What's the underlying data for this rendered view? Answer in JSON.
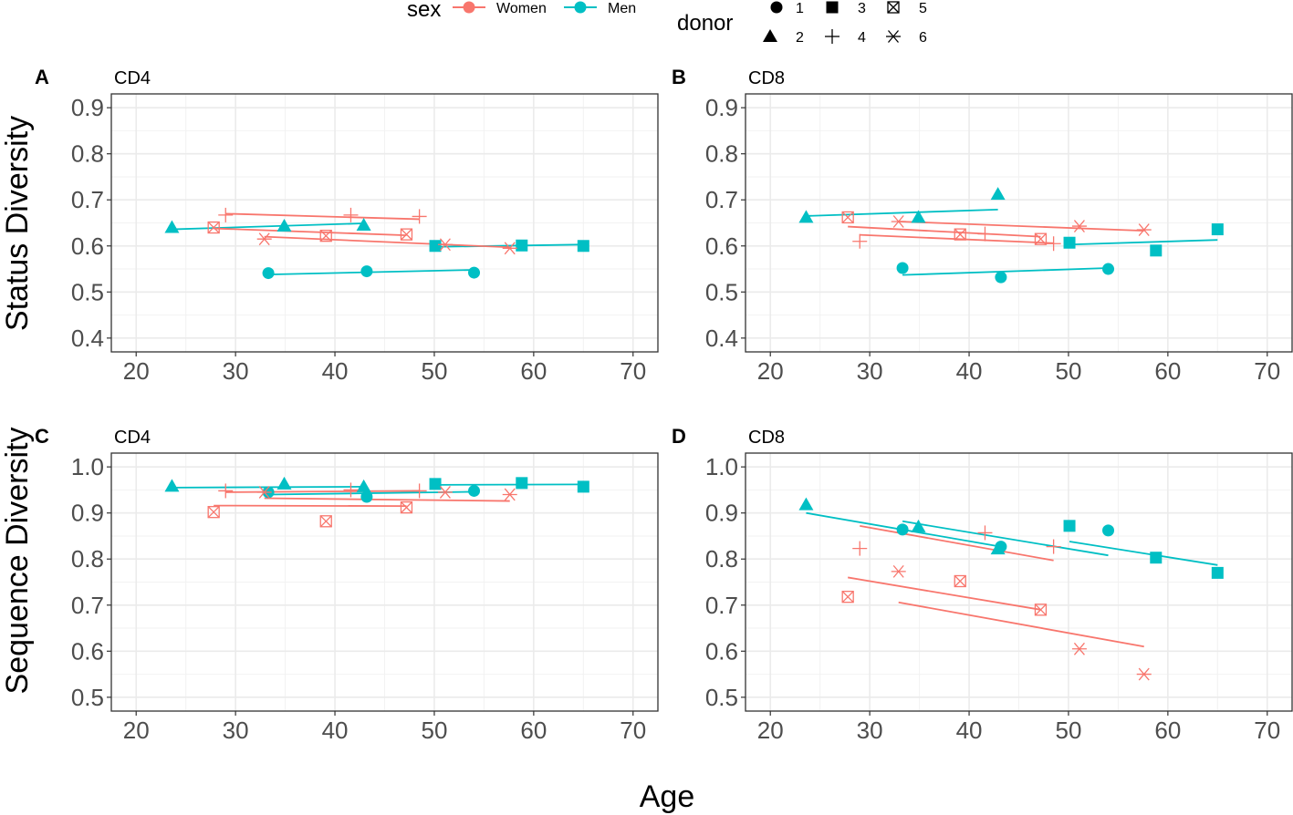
{
  "figure": {
    "x_axis_label": "Age",
    "legend": {
      "sex_title": "sex",
      "sex_items": [
        {
          "label": "Women",
          "color": "#F8766D"
        },
        {
          "label": "Men",
          "color": "#00BFC4"
        }
      ],
      "donor_title": "donor",
      "donor_items": [
        {
          "label": "1",
          "shape": "circle"
        },
        {
          "label": "2",
          "shape": "triangle"
        },
        {
          "label": "3",
          "shape": "square"
        },
        {
          "label": "4",
          "shape": "plus"
        },
        {
          "label": "5",
          "shape": "boxed-x"
        },
        {
          "label": "6",
          "shape": "asterisk"
        }
      ]
    }
  },
  "chart_data": [
    {
      "id": "A",
      "letter": "A",
      "title": "CD4",
      "type": "scatter",
      "ylabel": "Status Diversity",
      "xlim": [
        17.5,
        72.5
      ],
      "ylim": [
        0.37,
        0.93
      ],
      "xticks": [
        20,
        30,
        40,
        50,
        60,
        70
      ],
      "yticks": [
        0.4,
        0.5,
        0.6,
        0.7,
        0.8,
        0.9
      ],
      "series": [
        {
          "donor": 1,
          "sex": "Men",
          "points": [
            [
              33.3,
              0.541
            ],
            [
              43.2,
              0.545
            ],
            [
              54.0,
              0.542
            ]
          ],
          "fit": [
            [
              33.3,
              0.538
            ],
            [
              54.0,
              0.548
            ]
          ]
        },
        {
          "donor": 2,
          "sex": "Men",
          "points": [
            [
              23.6,
              0.64
            ],
            [
              34.9,
              0.643
            ],
            [
              42.9,
              0.645
            ]
          ],
          "fit": [
            [
              23.6,
              0.636
            ],
            [
              42.9,
              0.649
            ]
          ]
        },
        {
          "donor": 3,
          "sex": "Men",
          "points": [
            [
              50.1,
              0.6
            ],
            [
              58.8,
              0.601
            ],
            [
              65.0,
              0.6
            ]
          ],
          "fit": [
            [
              50.1,
              0.598
            ],
            [
              65.0,
              0.603
            ]
          ]
        },
        {
          "donor": 4,
          "sex": "Women",
          "points": [
            [
              29.0,
              0.667
            ],
            [
              41.6,
              0.667
            ],
            [
              48.5,
              0.664
            ]
          ],
          "fit": [
            [
              29.0,
              0.67
            ],
            [
              48.5,
              0.658
            ]
          ]
        },
        {
          "donor": 5,
          "sex": "Women",
          "points": [
            [
              27.8,
              0.64
            ],
            [
              39.1,
              0.622
            ],
            [
              47.2,
              0.625
            ]
          ],
          "fit": [
            [
              27.8,
              0.638
            ],
            [
              47.2,
              0.623
            ]
          ]
        },
        {
          "donor": 6,
          "sex": "Women",
          "points": [
            [
              32.9,
              0.615
            ],
            [
              51.1,
              0.603
            ],
            [
              57.6,
              0.595
            ]
          ],
          "fit": [
            [
              32.9,
              0.62
            ],
            [
              57.6,
              0.597
            ]
          ]
        }
      ]
    },
    {
      "id": "B",
      "letter": "B",
      "title": "CD8",
      "type": "scatter",
      "ylabel": "",
      "xlim": [
        17.5,
        72.5
      ],
      "ylim": [
        0.37,
        0.93
      ],
      "xticks": [
        20,
        30,
        40,
        50,
        60,
        70
      ],
      "yticks": [
        0.4,
        0.5,
        0.6,
        0.7,
        0.8,
        0.9
      ],
      "series": [
        {
          "donor": 1,
          "sex": "Men",
          "points": [
            [
              33.3,
              0.552
            ],
            [
              43.2,
              0.532
            ],
            [
              54.0,
              0.55
            ]
          ],
          "fit": [
            [
              33.3,
              0.537
            ],
            [
              54.0,
              0.552
            ]
          ]
        },
        {
          "donor": 2,
          "sex": "Men",
          "points": [
            [
              23.6,
              0.662
            ],
            [
              34.9,
              0.662
            ],
            [
              42.9,
              0.712
            ]
          ],
          "fit": [
            [
              23.6,
              0.665
            ],
            [
              42.9,
              0.679
            ]
          ]
        },
        {
          "donor": 3,
          "sex": "Men",
          "points": [
            [
              50.1,
              0.607
            ],
            [
              58.8,
              0.59
            ],
            [
              65.0,
              0.636
            ]
          ],
          "fit": [
            [
              50.1,
              0.603
            ],
            [
              65.0,
              0.613
            ]
          ]
        },
        {
          "donor": 4,
          "sex": "Women",
          "points": [
            [
              29.0,
              0.61
            ],
            [
              41.6,
              0.626
            ],
            [
              48.5,
              0.605
            ]
          ],
          "fit": [
            [
              29.0,
              0.624
            ],
            [
              48.5,
              0.606
            ]
          ]
        },
        {
          "donor": 5,
          "sex": "Women",
          "points": [
            [
              27.8,
              0.662
            ],
            [
              39.1,
              0.625
            ],
            [
              47.2,
              0.615
            ]
          ],
          "fit": [
            [
              27.8,
              0.642
            ],
            [
              47.2,
              0.62
            ]
          ]
        },
        {
          "donor": 6,
          "sex": "Women",
          "points": [
            [
              32.9,
              0.653
            ],
            [
              51.1,
              0.643
            ],
            [
              57.6,
              0.635
            ]
          ],
          "fit": [
            [
              32.9,
              0.653
            ],
            [
              57.6,
              0.633
            ]
          ]
        }
      ]
    },
    {
      "id": "C",
      "letter": "C",
      "title": "CD4",
      "type": "scatter",
      "ylabel": "Sequence Diversity",
      "xlim": [
        17.5,
        72.5
      ],
      "ylim": [
        0.47,
        1.03
      ],
      "xticks": [
        20,
        30,
        40,
        50,
        60,
        70
      ],
      "yticks": [
        0.5,
        0.6,
        0.7,
        0.8,
        0.9,
        1.0
      ],
      "series": [
        {
          "donor": 1,
          "sex": "Men",
          "points": [
            [
              33.3,
              0.945
            ],
            [
              43.2,
              0.935
            ],
            [
              54.0,
              0.948
            ]
          ],
          "fit": [
            [
              33.3,
              0.94
            ],
            [
              54.0,
              0.946
            ]
          ]
        },
        {
          "donor": 2,
          "sex": "Men",
          "points": [
            [
              23.6,
              0.958
            ],
            [
              34.9,
              0.963
            ],
            [
              42.9,
              0.957
            ]
          ],
          "fit": [
            [
              23.6,
              0.955
            ],
            [
              42.9,
              0.957
            ]
          ]
        },
        {
          "donor": 3,
          "sex": "Men",
          "points": [
            [
              50.1,
              0.963
            ],
            [
              58.8,
              0.965
            ],
            [
              65.0,
              0.957
            ]
          ],
          "fit": [
            [
              50.1,
              0.961
            ],
            [
              65.0,
              0.962
            ]
          ]
        },
        {
          "donor": 4,
          "sex": "Women",
          "points": [
            [
              29.0,
              0.948
            ],
            [
              41.6,
              0.95
            ],
            [
              48.5,
              0.948
            ]
          ],
          "fit": [
            [
              29.0,
              0.945
            ],
            [
              48.5,
              0.948
            ]
          ]
        },
        {
          "donor": 5,
          "sex": "Women",
          "points": [
            [
              27.8,
              0.902
            ],
            [
              39.1,
              0.882
            ],
            [
              47.2,
              0.912
            ]
          ],
          "fit": [
            [
              27.8,
              0.916
            ],
            [
              47.2,
              0.915
            ]
          ]
        },
        {
          "donor": 6,
          "sex": "Women",
          "points": [
            [
              32.9,
              0.945
            ],
            [
              51.1,
              0.945
            ],
            [
              57.6,
              0.94
            ]
          ],
          "fit": [
            [
              32.9,
              0.932
            ],
            [
              57.6,
              0.926
            ]
          ]
        }
      ]
    },
    {
      "id": "D",
      "letter": "D",
      "title": "CD8",
      "type": "scatter",
      "ylabel": "",
      "xlim": [
        17.5,
        72.5
      ],
      "ylim": [
        0.47,
        1.03
      ],
      "xticks": [
        20,
        30,
        40,
        50,
        60,
        70
      ],
      "yticks": [
        0.5,
        0.6,
        0.7,
        0.8,
        0.9,
        1.0
      ],
      "series": [
        {
          "donor": 1,
          "sex": "Men",
          "points": [
            [
              33.3,
              0.864
            ],
            [
              43.2,
              0.827
            ],
            [
              54.0,
              0.862
            ]
          ],
          "fit": [
            [
              33.3,
              0.882
            ],
            [
              54.0,
              0.808
            ]
          ]
        },
        {
          "donor": 2,
          "sex": "Men",
          "points": [
            [
              23.6,
              0.918
            ],
            [
              34.9,
              0.87
            ],
            [
              42.9,
              0.822
            ]
          ],
          "fit": [
            [
              23.6,
              0.9
            ],
            [
              42.9,
              0.828
            ]
          ]
        },
        {
          "donor": 3,
          "sex": "Men",
          "points": [
            [
              50.1,
              0.872
            ],
            [
              58.8,
              0.803
            ],
            [
              65.0,
              0.77
            ]
          ],
          "fit": [
            [
              50.1,
              0.838
            ],
            [
              65.0,
              0.787
            ]
          ]
        },
        {
          "donor": 4,
          "sex": "Women",
          "points": [
            [
              29.0,
              0.823
            ],
            [
              41.6,
              0.857
            ],
            [
              48.5,
              0.827
            ]
          ],
          "fit": [
            [
              29.0,
              0.872
            ],
            [
              48.5,
              0.797
            ]
          ]
        },
        {
          "donor": 5,
          "sex": "Women",
          "points": [
            [
              27.8,
              0.718
            ],
            [
              39.1,
              0.752
            ],
            [
              47.2,
              0.69
            ]
          ],
          "fit": [
            [
              27.8,
              0.76
            ],
            [
              47.2,
              0.69
            ]
          ]
        },
        {
          "donor": 6,
          "sex": "Women",
          "points": [
            [
              32.9,
              0.773
            ],
            [
              51.1,
              0.605
            ],
            [
              57.6,
              0.55
            ]
          ],
          "fit": [
            [
              32.9,
              0.706
            ],
            [
              57.6,
              0.61
            ]
          ]
        }
      ]
    }
  ]
}
